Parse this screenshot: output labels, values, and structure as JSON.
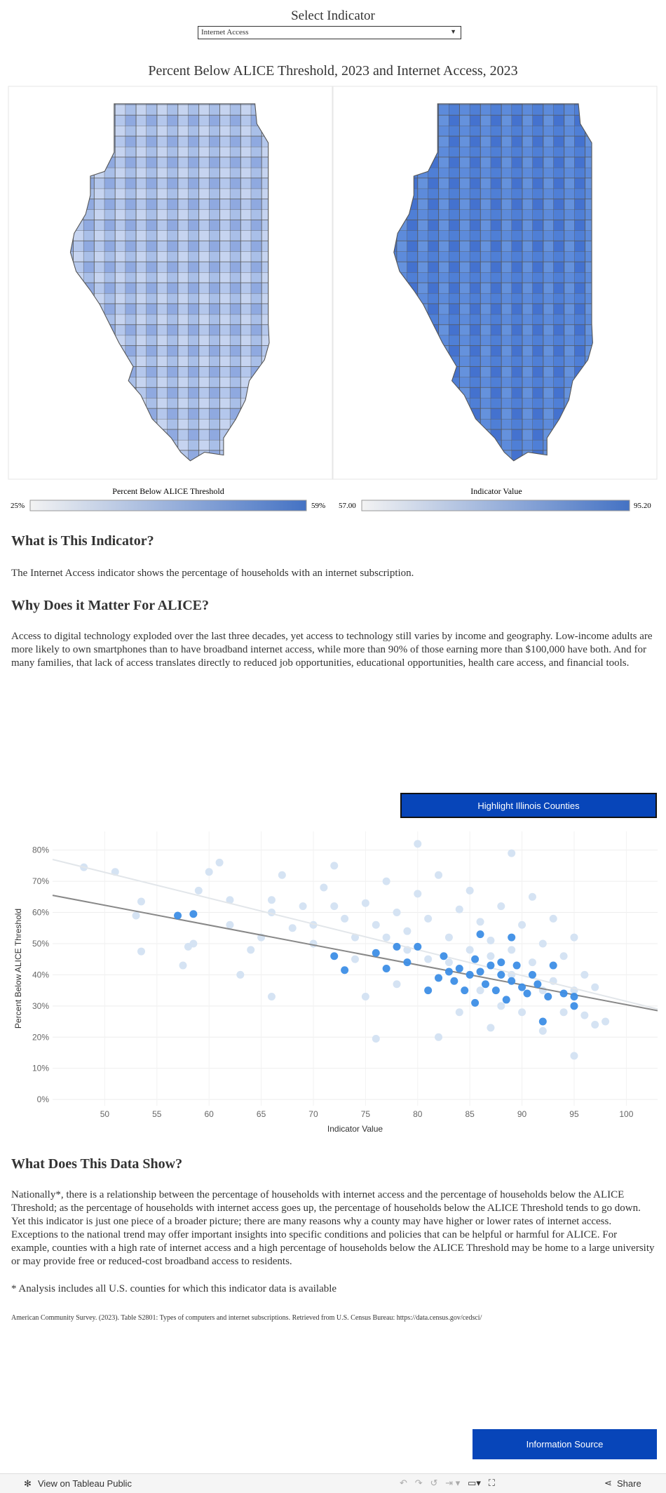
{
  "selector": {
    "label": "Select Indicator",
    "selected": "Internet Access"
  },
  "map": {
    "title": "Percent Below ALICE Threshold, 2023 and Internet Access, 2023",
    "legends": [
      {
        "title": "Percent Below ALICE Threshold",
        "min": "25%",
        "max": "59%"
      },
      {
        "title": "Indicator Value",
        "min": "57.00",
        "max": "95.20"
      }
    ]
  },
  "sections": [
    {
      "heading": "What is This Indicator?",
      "body": "The Internet Access indicator shows the percentage of households with an internet subscription."
    },
    {
      "heading": "Why Does it Matter For ALICE?",
      "body": "Access to digital technology exploded over the last three decades, yet access to technology still varies by income and geography. Low-income adults are more likely to own smartphones than to have broadband internet access, while more than 90% of those earning more than $100,000 have both. And for many families, that lack of access translates directly to reduced job opportunities, educational opportunities, health care access, and financial tools."
    },
    {
      "heading": "What Does This Data Show?",
      "body": "Nationally*, there is a relationship between the percentage of households with internet access and the percentage of households below the ALICE Threshold; as the percentage of households with internet access goes up, the percentage of households below the ALICE Threshold tends to go down. Yet this indicator is just one piece of a broader picture; there are many reasons why a county may have higher or lower rates of internet access. Exceptions to the national trend may offer important insights into specific conditions and policies that can be helpful or harmful for ALICE. For example, counties with a high rate of internet access and a high percentage of households below the ALICE Threshold may be home to a large university or may provide free or reduced-cost broadband access to residents."
    }
  ],
  "buttons": {
    "highlight": "Highlight Illinois Counties",
    "source": "Information Source"
  },
  "footnote": "* Analysis includes all U.S. counties for which this indicator data is available",
  "citation": "American Community Survey. (2023). Table S2801: Types of computers and internet subscriptions. Retrieved from U.S. Census Bureau: https://data.census.gov/cedsci/",
  "footer": {
    "tableau": "View on Tableau Public",
    "share": "Share"
  },
  "chart_data": {
    "type": "scatter",
    "xlabel": "Indicator Value",
    "ylabel": "Percent Below ALICE Threshold",
    "xlim": [
      45,
      103
    ],
    "ylim": [
      -2,
      86
    ],
    "xticks": [
      50,
      55,
      60,
      65,
      70,
      75,
      80,
      85,
      90,
      95,
      100
    ],
    "yticks": [
      {
        "value": 0,
        "label": "0%"
      },
      {
        "value": 10,
        "label": "10%"
      },
      {
        "value": 20,
        "label": "20%"
      },
      {
        "value": 30,
        "label": "30%"
      },
      {
        "value": 40,
        "label": "40%"
      },
      {
        "value": 50,
        "label": "50%"
      },
      {
        "value": 60,
        "label": "60%"
      },
      {
        "value": 70,
        "label": "70%"
      },
      {
        "value": 80,
        "label": "80%"
      }
    ],
    "grid": true,
    "series": [
      {
        "color": "#d3e2f2",
        "x": [
          48,
          51,
          53,
          53.5,
          53.5,
          57.5,
          58,
          58.5,
          59,
          60,
          61,
          62,
          63,
          64,
          65,
          66,
          66,
          67,
          68,
          69,
          70,
          71,
          72,
          73,
          74,
          75,
          75,
          76,
          76,
          77,
          78,
          78,
          79,
          80,
          80,
          81,
          81,
          82,
          82,
          83,
          84,
          84,
          85,
          85,
          86,
          86,
          87,
          87,
          88,
          88,
          89,
          89,
          90,
          90,
          91,
          91,
          92,
          92,
          93,
          93,
          94,
          94,
          95,
          95,
          96,
          96,
          97,
          97,
          98,
          87,
          83,
          79,
          74,
          70,
          77,
          85,
          89,
          92,
          95,
          66,
          62,
          72
        ],
        "values": [
          74.5,
          73,
          59,
          63.5,
          47.5,
          43,
          49,
          50,
          67,
          73,
          76,
          64,
          40,
          48,
          52,
          33,
          60,
          72,
          55,
          62,
          50,
          68,
          75,
          58,
          52,
          63,
          33,
          19.5,
          56,
          70,
          60,
          37,
          54,
          66,
          82,
          45,
          58,
          20,
          72,
          52,
          61,
          28,
          48,
          67,
          57,
          35,
          23,
          46,
          62,
          30,
          79,
          48,
          56,
          28,
          44,
          65,
          22,
          50,
          58,
          38,
          28,
          46,
          14,
          52,
          27,
          40,
          36,
          24,
          25,
          51,
          44,
          48,
          45,
          56,
          52,
          40,
          40,
          35,
          35,
          64,
          56,
          62
        ]
      },
      {
        "color": "#3d8ee6",
        "x": [
          57,
          58.5,
          72,
          73,
          76,
          77,
          78,
          79,
          80,
          81,
          82,
          82.5,
          83,
          83.5,
          84,
          84.5,
          85,
          85.5,
          85.5,
          86,
          86,
          86.5,
          87,
          87.5,
          88,
          88.5,
          89,
          89,
          89.5,
          90,
          90.5,
          91,
          92,
          92.5,
          93,
          94,
          95,
          95,
          91.5,
          88
        ],
        "values": [
          59,
          59.5,
          46,
          41.5,
          47,
          42,
          49,
          44,
          49,
          35,
          39,
          46,
          41,
          38,
          42,
          35,
          40,
          31,
          45,
          53,
          41,
          37,
          43,
          35,
          40,
          32,
          52,
          38,
          43,
          36,
          34,
          40,
          25,
          33,
          43,
          34,
          33,
          30,
          37,
          44
        ]
      }
    ],
    "trend_lines": [
      {
        "color": "#e2e6ea",
        "x": [
          45,
          103
        ],
        "values": [
          77,
          29
        ]
      },
      {
        "color": "#888888",
        "x": [
          45,
          103
        ],
        "values": [
          65.5,
          28.5
        ]
      }
    ]
  }
}
